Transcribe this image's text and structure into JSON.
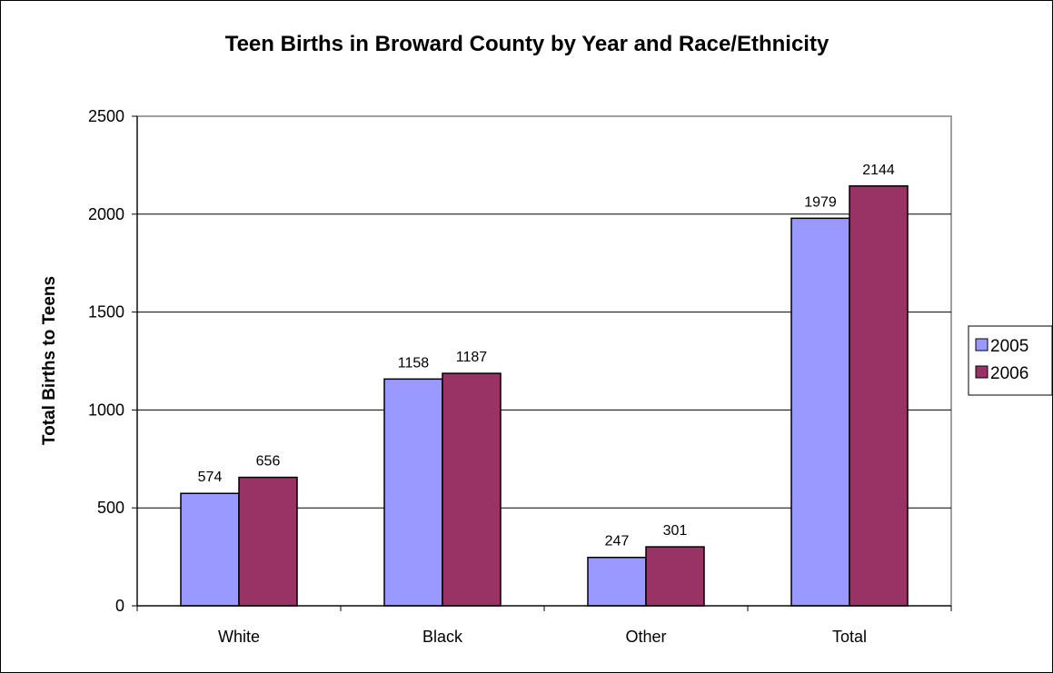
{
  "chart_data": {
    "type": "bar",
    "title": "Teen Births in Broward County by Year and Race/Ethnicity",
    "xlabel": "",
    "ylabel": "Total Births to Teens",
    "categories": [
      "White",
      "Black",
      "Other",
      "Total"
    ],
    "series": [
      {
        "name": "2005",
        "values": [
          574,
          1158,
          247,
          1979
        ],
        "color": "#9999FF"
      },
      {
        "name": "2006",
        "values": [
          656,
          1187,
          301,
          2144
        ],
        "color": "#993366"
      }
    ],
    "ylim": [
      0,
      2500
    ],
    "yticks": [
      0,
      500,
      1000,
      1500,
      2000,
      2500
    ],
    "grid": true,
    "legend": "right"
  }
}
